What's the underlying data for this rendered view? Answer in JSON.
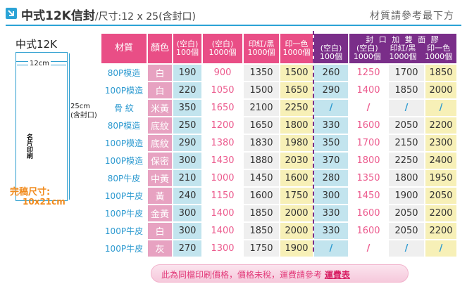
{
  "header": {
    "title": "中式12K信封",
    "size_spec": "/尺寸:12 x 25(含封口)",
    "note": "材質請參考最下方"
  },
  "diagram": {
    "model": "中式12K",
    "width_label": "12cm",
    "height_label_1": "25cm",
    "height_label_2": "(含封口)",
    "stamp_text": "名片印刷",
    "finish_label": "完稿尺寸:",
    "finish_size": "10x21cm"
  },
  "table": {
    "group_header": "封 口 加 雙 面 膠",
    "headers": [
      {
        "l1": "材質",
        "l2": ""
      },
      {
        "l1": "顏色",
        "l2": ""
      },
      {
        "l1": "(空白)",
        "l2": "100個"
      },
      {
        "l1": "(空白)",
        "l2": "1000個"
      },
      {
        "l1": "印紅/黑",
        "l2": "1000個"
      },
      {
        "l1": "印一色",
        "l2": "1000個"
      },
      {
        "l1": "(空白)",
        "l2": "100個"
      },
      {
        "l1": "(空白)",
        "l2": "1000個"
      },
      {
        "l1": "印紅/黑",
        "l2": "1000個"
      },
      {
        "l1": "印一色",
        "l2": "1000個"
      }
    ],
    "rows": [
      {
        "material": "80P模造",
        "color": "白",
        "v": [
          "190",
          "900",
          "1350",
          "1500",
          "260",
          "1250",
          "1700",
          "1850"
        ]
      },
      {
        "material": "100P模造",
        "color": "白",
        "v": [
          "220",
          "1050",
          "1500",
          "1650",
          "290",
          "1400",
          "1850",
          "2000"
        ]
      },
      {
        "material": "骨 紋",
        "color": "米黃",
        "v": [
          "350",
          "1650",
          "2100",
          "2250",
          "/",
          "/",
          "/",
          "/"
        ]
      },
      {
        "material": "80P模造",
        "color": "底紋",
        "v": [
          "250",
          "1200",
          "1650",
          "1800",
          "330",
          "1600",
          "2050",
          "2200"
        ]
      },
      {
        "material": "100P模造",
        "color": "底紋",
        "v": [
          "290",
          "1380",
          "1830",
          "1980",
          "350",
          "1700",
          "2150",
          "2300"
        ]
      },
      {
        "material": "100P模造",
        "color": "保密",
        "v": [
          "300",
          "1430",
          "1880",
          "2030",
          "370",
          "1800",
          "2250",
          "2400"
        ]
      },
      {
        "material": "80P牛皮",
        "color": "中黃",
        "v": [
          "210",
          "1000",
          "1450",
          "1600",
          "280",
          "1350",
          "1800",
          "1950"
        ]
      },
      {
        "material": "100P牛皮",
        "color": "黃",
        "v": [
          "240",
          "1150",
          "1600",
          "1750",
          "300",
          "1450",
          "1900",
          "2050"
        ]
      },
      {
        "material": "100P牛皮",
        "color": "金黃",
        "v": [
          "300",
          "1400",
          "1850",
          "2000",
          "330",
          "1600",
          "2050",
          "2200"
        ]
      },
      {
        "material": "100P牛皮",
        "color": "白",
        "v": [
          "300",
          "1400",
          "1850",
          "2000",
          "330",
          "1600",
          "2050",
          "2200"
        ]
      },
      {
        "material": "100P牛皮",
        "color": "灰",
        "v": [
          "270",
          "1300",
          "1750",
          "1900",
          "/",
          "/",
          "/",
          "/"
        ]
      }
    ]
  },
  "footer": {
    "text": "此為同檔印刷價格，價格未稅，運費請參考 ",
    "link": "運費表"
  },
  "colors": {
    "accent_blue": "#2ba3d6",
    "header_pink": "#e94e86",
    "header_purple": "#7a2e89",
    "price_pink": "#ec5b8e",
    "finish_orange": "#f18a1b"
  }
}
